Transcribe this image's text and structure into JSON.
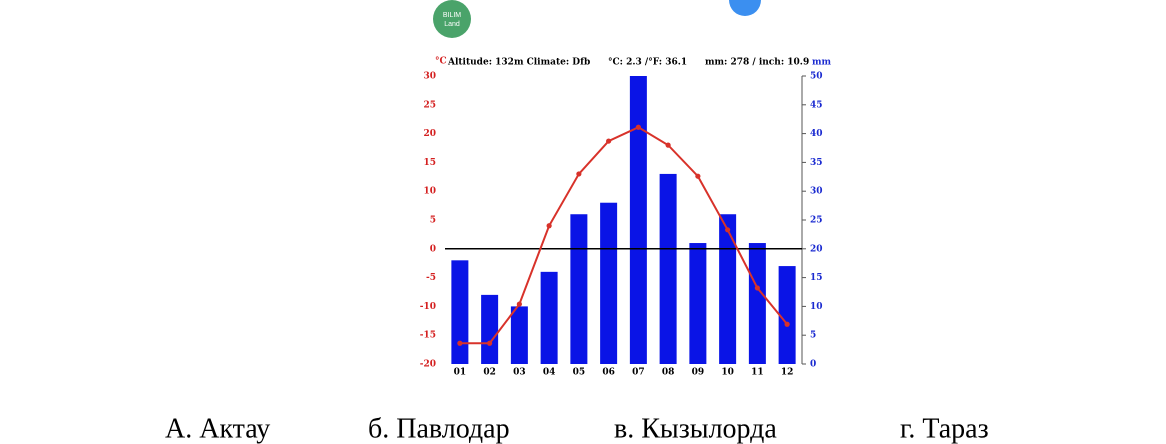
{
  "logo": {
    "line1": "BILIM",
    "line2": "Land"
  },
  "chart_data": {
    "type": "combo",
    "ylabel": "°C",
    "y2label": "mm",
    "header": [
      "Altitude: 132m Climate: Dfb",
      "°C: 2.3 /°F: 36.1",
      "mm: 278 / inch: 10.9"
    ],
    "categories": [
      "01",
      "02",
      "03",
      "04",
      "05",
      "06",
      "07",
      "08",
      "09",
      "10",
      "11",
      "12"
    ],
    "ylim": [
      -20,
      30
    ],
    "yticks": [
      30,
      25,
      20,
      15,
      10,
      5,
      0,
      -5,
      -10,
      -15,
      -20
    ],
    "y2lim": [
      0,
      50
    ],
    "y2ticks": [
      50,
      45,
      40,
      35,
      30,
      25,
      20,
      15,
      10,
      5,
      0
    ],
    "ycolor": "#d42020",
    "y2color": "#1a2ad0",
    "series": [
      {
        "type": "bar",
        "axis": "y2",
        "color": "#0a14e6",
        "values": [
          18,
          12,
          10,
          16,
          26,
          28,
          50,
          33,
          21,
          26,
          21,
          17
        ]
      },
      {
        "type": "line",
        "color": "#d8322a",
        "values": [
          -16.4,
          -16.4,
          -9.6,
          4.0,
          13.0,
          18.7,
          21.1,
          18.0,
          12.6,
          3.3,
          -6.8,
          -13.1
        ]
      }
    ]
  },
  "options": [
    "А. Актау",
    "б. Павлодар",
    "в. Кызылорда",
    "г. Тараз"
  ]
}
